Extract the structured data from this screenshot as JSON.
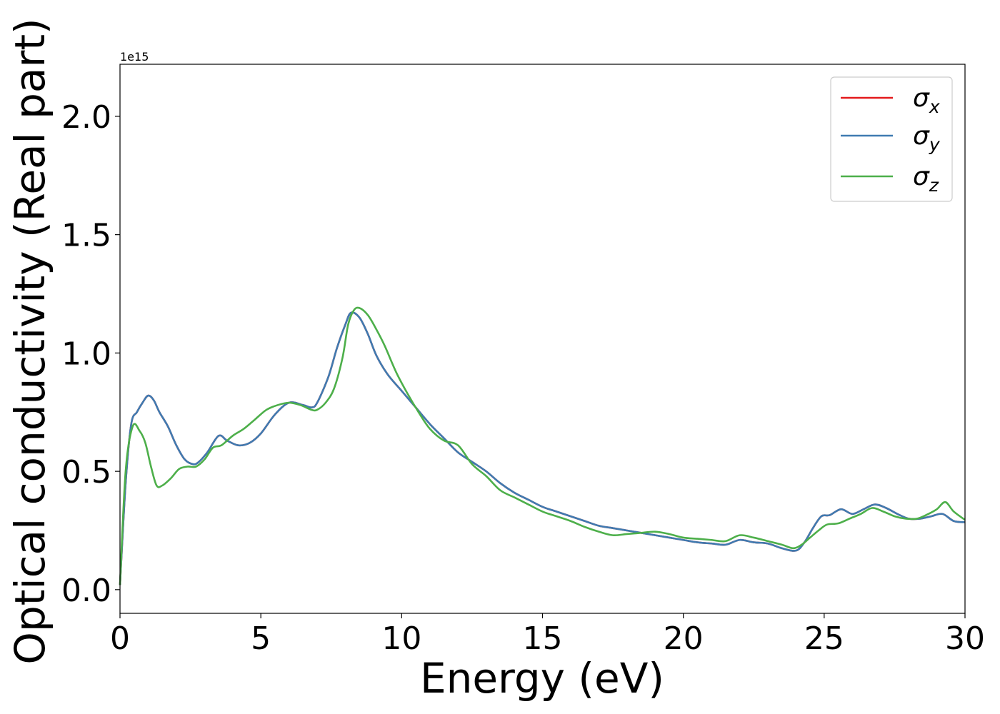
{
  "chart_data": {
    "type": "line",
    "title": "",
    "xlabel": "Energy (eV)",
    "ylabel": "Optical conductivity (Real part)",
    "y_offset_text": "1e15",
    "xlim": [
      0,
      30
    ],
    "ylim": [
      -0.1,
      2.22
    ],
    "grid": false,
    "legend_position": "top-right",
    "xticks": [
      0,
      5,
      10,
      15,
      20,
      25,
      30
    ],
    "xtick_labels": [
      "0",
      "5",
      "10",
      "15",
      "20",
      "25",
      "30"
    ],
    "yticks": [
      0.0,
      0.5,
      1.0,
      1.5,
      2.0
    ],
    "ytick_labels": [
      "0.0",
      "0.5",
      "1.0",
      "1.5",
      "2.0"
    ],
    "series": [
      {
        "name": "σx",
        "symbol": "σ",
        "subscript": "x",
        "color": "#e41a1c",
        "x": [
          0,
          0.2,
          0.4,
          0.6,
          0.8,
          1.0,
          1.2,
          1.4,
          1.7,
          2.0,
          2.3,
          2.6,
          2.8,
          3.1,
          3.5,
          3.8,
          4.2,
          4.6,
          5.0,
          5.5,
          6.0,
          6.5,
          6.8,
          7.0,
          7.4,
          7.7,
          8.0,
          8.2,
          8.5,
          8.8,
          9.1,
          9.5,
          10.0,
          10.5,
          11.0,
          11.5,
          12.0,
          12.5,
          13.0,
          13.5,
          14.0,
          14.5,
          15.0,
          15.5,
          16.0,
          16.5,
          17.0,
          17.5,
          18.0,
          18.5,
          19.0,
          19.5,
          20.0,
          20.5,
          21.0,
          21.5,
          22.0,
          22.5,
          23.0,
          23.5,
          24.0,
          24.3,
          24.6,
          24.9,
          25.2,
          25.6,
          26.0,
          26.4,
          26.8,
          27.2,
          27.6,
          28.0,
          28.4,
          28.8,
          29.2,
          29.6,
          30.0
        ],
        "y": [
          0.02,
          0.45,
          0.7,
          0.75,
          0.79,
          0.82,
          0.8,
          0.75,
          0.69,
          0.61,
          0.55,
          0.53,
          0.54,
          0.58,
          0.65,
          0.63,
          0.61,
          0.62,
          0.66,
          0.74,
          0.79,
          0.78,
          0.77,
          0.79,
          0.9,
          1.02,
          1.12,
          1.17,
          1.15,
          1.08,
          0.99,
          0.91,
          0.84,
          0.77,
          0.7,
          0.64,
          0.58,
          0.54,
          0.5,
          0.45,
          0.41,
          0.38,
          0.35,
          0.33,
          0.31,
          0.29,
          0.27,
          0.26,
          0.25,
          0.24,
          0.23,
          0.22,
          0.21,
          0.2,
          0.195,
          0.19,
          0.21,
          0.2,
          0.195,
          0.175,
          0.165,
          0.2,
          0.26,
          0.31,
          0.315,
          0.34,
          0.32,
          0.34,
          0.36,
          0.345,
          0.32,
          0.3,
          0.3,
          0.31,
          0.32,
          0.29,
          0.285
        ]
      },
      {
        "name": "σy",
        "symbol": "σ",
        "subscript": "y",
        "color": "#3f7bb1",
        "x": [
          0,
          0.2,
          0.4,
          0.6,
          0.8,
          1.0,
          1.2,
          1.4,
          1.7,
          2.0,
          2.3,
          2.6,
          2.8,
          3.1,
          3.5,
          3.8,
          4.2,
          4.6,
          5.0,
          5.5,
          6.0,
          6.5,
          6.8,
          7.0,
          7.4,
          7.7,
          8.0,
          8.2,
          8.5,
          8.8,
          9.1,
          9.5,
          10.0,
          10.5,
          11.0,
          11.5,
          12.0,
          12.5,
          13.0,
          13.5,
          14.0,
          14.5,
          15.0,
          15.5,
          16.0,
          16.5,
          17.0,
          17.5,
          18.0,
          18.5,
          19.0,
          19.5,
          20.0,
          20.5,
          21.0,
          21.5,
          22.0,
          22.5,
          23.0,
          23.5,
          24.0,
          24.3,
          24.6,
          24.9,
          25.2,
          25.6,
          26.0,
          26.4,
          26.8,
          27.2,
          27.6,
          28.0,
          28.4,
          28.8,
          29.2,
          29.6,
          30.0
        ],
        "y": [
          0.02,
          0.45,
          0.7,
          0.75,
          0.79,
          0.82,
          0.8,
          0.75,
          0.69,
          0.61,
          0.55,
          0.53,
          0.54,
          0.58,
          0.65,
          0.63,
          0.61,
          0.62,
          0.66,
          0.74,
          0.79,
          0.78,
          0.77,
          0.79,
          0.9,
          1.02,
          1.12,
          1.17,
          1.15,
          1.08,
          0.99,
          0.91,
          0.84,
          0.77,
          0.7,
          0.64,
          0.58,
          0.54,
          0.5,
          0.45,
          0.41,
          0.38,
          0.35,
          0.33,
          0.31,
          0.29,
          0.27,
          0.26,
          0.25,
          0.24,
          0.23,
          0.22,
          0.21,
          0.2,
          0.195,
          0.19,
          0.21,
          0.2,
          0.195,
          0.175,
          0.165,
          0.2,
          0.26,
          0.31,
          0.315,
          0.34,
          0.32,
          0.34,
          0.36,
          0.345,
          0.32,
          0.3,
          0.3,
          0.31,
          0.32,
          0.29,
          0.285
        ]
      },
      {
        "name": "σz",
        "symbol": "σ",
        "subscript": "z",
        "color": "#4daf4a",
        "x": [
          0,
          0.2,
          0.45,
          0.7,
          0.9,
          1.1,
          1.3,
          1.5,
          1.8,
          2.1,
          2.4,
          2.7,
          3.0,
          3.3,
          3.6,
          4.0,
          4.4,
          4.8,
          5.2,
          5.6,
          6.0,
          6.4,
          6.8,
          7.0,
          7.3,
          7.6,
          7.9,
          8.1,
          8.3,
          8.5,
          8.8,
          9.1,
          9.4,
          9.8,
          10.2,
          10.6,
          11.0,
          11.5,
          12.0,
          12.5,
          13.0,
          13.5,
          14.0,
          14.5,
          15.0,
          15.5,
          16.0,
          16.5,
          17.0,
          17.5,
          18.0,
          18.5,
          19.0,
          19.5,
          20.0,
          20.5,
          21.0,
          21.5,
          22.0,
          22.5,
          23.0,
          23.5,
          23.9,
          24.2,
          24.5,
          24.8,
          25.1,
          25.5,
          25.9,
          26.3,
          26.7,
          27.1,
          27.5,
          27.9,
          28.3,
          28.7,
          29.0,
          29.3,
          29.6,
          30.0
        ],
        "y": [
          0.02,
          0.5,
          0.69,
          0.67,
          0.62,
          0.52,
          0.44,
          0.44,
          0.47,
          0.51,
          0.52,
          0.52,
          0.55,
          0.6,
          0.61,
          0.65,
          0.68,
          0.72,
          0.76,
          0.78,
          0.79,
          0.78,
          0.76,
          0.76,
          0.79,
          0.85,
          0.98,
          1.12,
          1.18,
          1.19,
          1.16,
          1.1,
          1.03,
          0.92,
          0.83,
          0.75,
          0.68,
          0.63,
          0.61,
          0.53,
          0.48,
          0.42,
          0.39,
          0.36,
          0.33,
          0.31,
          0.29,
          0.265,
          0.245,
          0.23,
          0.235,
          0.24,
          0.245,
          0.235,
          0.22,
          0.215,
          0.21,
          0.205,
          0.23,
          0.22,
          0.205,
          0.19,
          0.175,
          0.19,
          0.22,
          0.25,
          0.275,
          0.28,
          0.3,
          0.32,
          0.345,
          0.33,
          0.31,
          0.3,
          0.3,
          0.32,
          0.34,
          0.37,
          0.33,
          0.295
        ]
      }
    ]
  }
}
